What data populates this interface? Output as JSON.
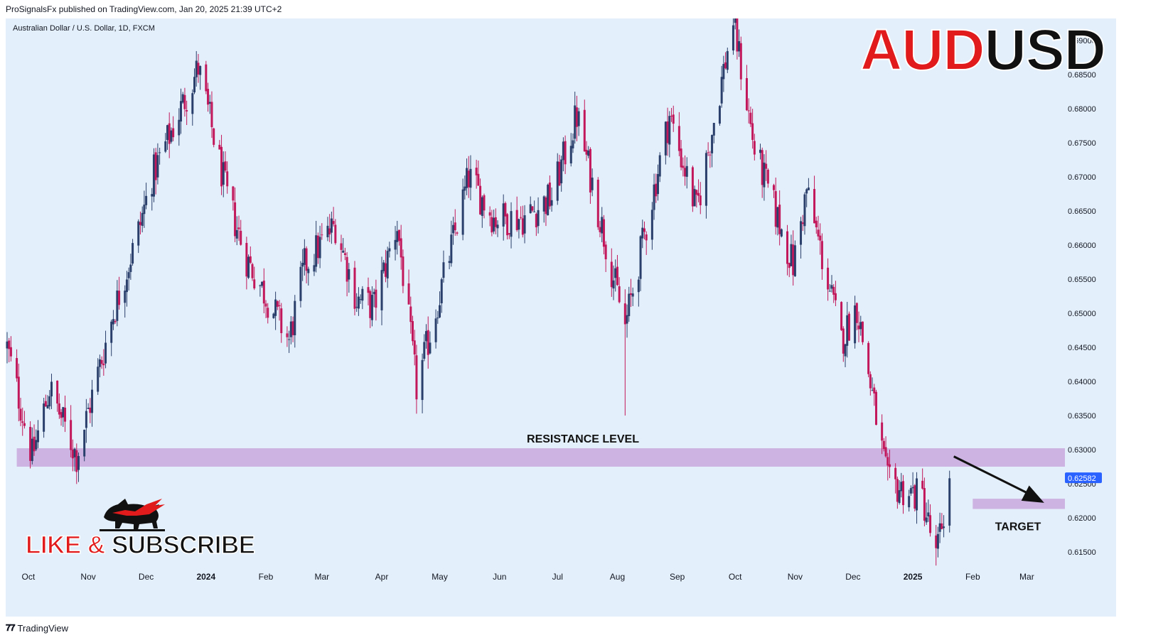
{
  "header": {
    "published_line": "ProSignalsFx published on TradingView.com, Jan 20, 2025 21:39 UTC+2"
  },
  "symbol_line": "Australian Dollar / U.S. Dollar, 1D, FXCM",
  "big_title": {
    "part1": "AUD",
    "part2": "USD"
  },
  "footer": {
    "brand": "TradingView"
  },
  "subscribe": {
    "part1": "LIKE & ",
    "part2": "SUBSCRIBE"
  },
  "colors": {
    "up": "#2a3f6b",
    "down": "#c2185b",
    "zone": "#c9a8dc",
    "price_badge": "#2962ff",
    "background": "#e3effa"
  },
  "chart_data": {
    "type": "candlestick",
    "title": "",
    "ylim": [
      0.6125,
      0.6925
    ],
    "y_ticks": [
      "0.69000",
      "0.68500",
      "0.68000",
      "0.67500",
      "0.67000",
      "0.66500",
      "0.66000",
      "0.65500",
      "0.65000",
      "0.64500",
      "0.64000",
      "0.63500",
      "0.63000",
      "0.62500",
      "0.62000",
      "0.61500"
    ],
    "x_ticks": [
      {
        "label": "Oct",
        "date": "2023-10-01",
        "bold": false
      },
      {
        "label": "Nov",
        "date": "2023-11-01",
        "bold": false
      },
      {
        "label": "Dec",
        "date": "2023-12-01",
        "bold": false
      },
      {
        "label": "2024",
        "date": "2024-01-01",
        "bold": true
      },
      {
        "label": "Feb",
        "date": "2024-02-01",
        "bold": false
      },
      {
        "label": "Mar",
        "date": "2024-03-01",
        "bold": false
      },
      {
        "label": "Apr",
        "date": "2024-04-01",
        "bold": false
      },
      {
        "label": "May",
        "date": "2024-05-01",
        "bold": false
      },
      {
        "label": "Jun",
        "date": "2024-06-01",
        "bold": false
      },
      {
        "label": "Jul",
        "date": "2024-07-01",
        "bold": false
      },
      {
        "label": "Aug",
        "date": "2024-08-01",
        "bold": false
      },
      {
        "label": "Sep",
        "date": "2024-09-01",
        "bold": false
      },
      {
        "label": "Oct",
        "date": "2024-10-01",
        "bold": false
      },
      {
        "label": "Nov",
        "date": "2024-11-01",
        "bold": false
      },
      {
        "label": "Dec",
        "date": "2024-12-01",
        "bold": false
      },
      {
        "label": "2025",
        "date": "2025-01-01",
        "bold": true
      },
      {
        "label": "Feb",
        "date": "2025-02-01",
        "bold": false
      },
      {
        "label": "Mar",
        "date": "2025-03-01",
        "bold": false
      }
    ],
    "x_range": [
      "2023-09-20",
      "2025-03-20"
    ],
    "price_path": [
      [
        "2023-09-20",
        0.645
      ],
      [
        "2023-10-03",
        0.629
      ],
      [
        "2023-10-12",
        0.639
      ],
      [
        "2023-10-26",
        0.629
      ],
      [
        "2023-11-14",
        0.65
      ],
      [
        "2023-11-27",
        0.662
      ],
      [
        "2023-12-04",
        0.67
      ],
      [
        "2023-12-28",
        0.686
      ],
      [
        "2024-01-12",
        0.667
      ],
      [
        "2024-01-22",
        0.658
      ],
      [
        "2024-02-13",
        0.646
      ],
      [
        "2024-02-21",
        0.657
      ],
      [
        "2024-03-08",
        0.663
      ],
      [
        "2024-03-19",
        0.652
      ],
      [
        "2024-03-28",
        0.651
      ],
      [
        "2024-04-09",
        0.663
      ],
      [
        "2024-04-19",
        0.639
      ],
      [
        "2024-05-16",
        0.67
      ],
      [
        "2024-05-29",
        0.664
      ],
      [
        "2024-06-14",
        0.664
      ],
      [
        "2024-06-28",
        0.667
      ],
      [
        "2024-07-11",
        0.679
      ],
      [
        "2024-07-31",
        0.654
      ],
      [
        "2024-08-05",
        0.648
      ],
      [
        "2024-08-28",
        0.679
      ],
      [
        "2024-09-11",
        0.665
      ],
      [
        "2024-09-30",
        0.693
      ],
      [
        "2024-10-11",
        0.674
      ],
      [
        "2024-10-31",
        0.657
      ],
      [
        "2024-11-07",
        0.668
      ],
      [
        "2024-11-25",
        0.646
      ],
      [
        "2024-12-03",
        0.651
      ],
      [
        "2024-12-19",
        0.625
      ],
      [
        "2025-01-06",
        0.623
      ],
      [
        "2025-01-13",
        0.614
      ],
      [
        "2025-01-20",
        0.6258
      ]
    ],
    "wick_extremes": [
      [
        "2024-08-05",
        0.635
      ],
      [
        "2024-04-19",
        0.6362
      ],
      [
        "2025-01-13",
        0.613
      ],
      [
        "2024-09-30",
        0.6942
      ],
      [
        "2023-12-28",
        0.6871
      ]
    ],
    "last_price": "0.62582",
    "zones": [
      {
        "name": "resistance",
        "from": 0.6275,
        "to": 0.6302,
        "x_start": "2023-09-25",
        "x_end": "2025-03-25",
        "label": "RESISTANCE LEVEL"
      },
      {
        "name": "target",
        "from": 0.6213,
        "to": 0.6228,
        "x_start": "2025-02-01",
        "x_end": "2025-03-25",
        "label": "TARGET"
      }
    ],
    "arrow": {
      "from": [
        "2025-01-20",
        0.629
      ],
      "to": [
        "2025-03-10",
        0.6222
      ]
    }
  }
}
